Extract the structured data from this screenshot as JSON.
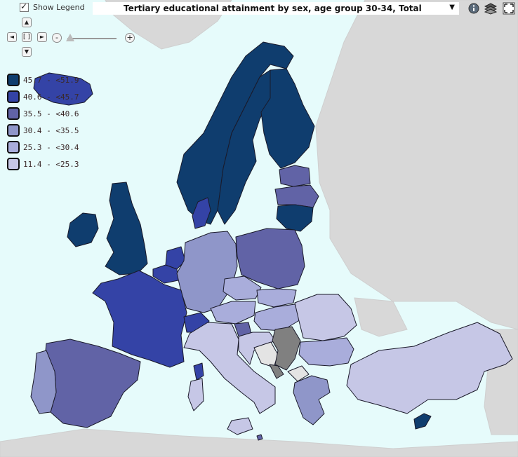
{
  "toolbar": {
    "show_legend_label": "Show Legend",
    "show_legend_checked": true,
    "dataset_title": "Tertiary educational attainment by sex, age group 30-34, Total",
    "info_icon": "info-icon",
    "layers_icon": "layers-icon",
    "fullscreen_icon": "fullscreen-icon"
  },
  "navigation": {
    "pan_up": "▲",
    "pan_down": "▼",
    "pan_left": "◄",
    "pan_right": "►",
    "reset": "[ ]",
    "zoom_out": "-",
    "zoom_in": "+"
  },
  "legend": {
    "items": [
      {
        "label": "45.7 - <51.9",
        "color": "#0f3d6e"
      },
      {
        "label": "40.6 - <45.7",
        "color": "#3443a6"
      },
      {
        "label": "35.5 - <40.6",
        "color": "#6163a6"
      },
      {
        "label": "30.4 - <35.5",
        "color": "#8f96c9"
      },
      {
        "label": "25.3 - <30.4",
        "color": "#a9addb"
      },
      {
        "label": "11.4 - <25.3",
        "color": "#c6c7e6"
      }
    ]
  },
  "colors": {
    "sea": "#e6fbfb",
    "no_data": "#808080",
    "excluded": "#e4e4e4",
    "outside_land": "#d8d8d8"
  }
}
